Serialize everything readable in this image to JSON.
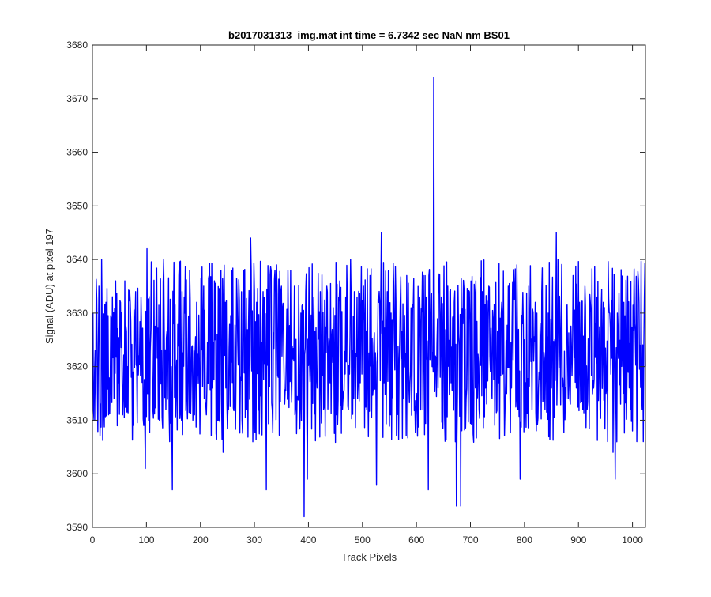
{
  "chart_data": {
    "type": "line",
    "title": "b2017031313_img.mat int time = 6.7342 sec  NaN nm BS01",
    "xlabel": "Track Pixels",
    "ylabel": "Signal (ADU) at pixel 197",
    "xlim": [
      0,
      1024
    ],
    "ylim": [
      3590,
      3680
    ],
    "xticks": [
      0,
      100,
      200,
      300,
      400,
      500,
      600,
      700,
      800,
      900,
      1000
    ],
    "yticks": [
      3590,
      3600,
      3610,
      3620,
      3630,
      3640,
      3650,
      3660,
      3670,
      3680
    ],
    "x_tick_labels": [
      "0",
      "100",
      "200",
      "300",
      "400",
      "500",
      "600",
      "700",
      "800",
      "900",
      "1000"
    ],
    "y_tick_labels": [
      "3590",
      "3600",
      "3610",
      "3620",
      "3630",
      "3640",
      "3650",
      "3660",
      "3670",
      "3680"
    ],
    "grid": false,
    "series": [
      {
        "color": "#0000ff",
        "noise": {
          "n_points": 1024,
          "mean": 3622,
          "min": 3604,
          "max": 3640,
          "x_start": 1
        },
        "points": [
          [
            1,
            3630
          ],
          [
            3,
            3610
          ],
          [
            5,
            3623
          ],
          [
            9,
            3618
          ],
          [
            12,
            3635
          ],
          [
            15,
            3613
          ],
          [
            17,
            3640
          ],
          [
            20,
            3611
          ],
          [
            25,
            3632
          ],
          [
            30,
            3611
          ],
          [
            35,
            3629
          ],
          [
            40,
            3614
          ],
          [
            43,
            3636
          ],
          [
            48,
            3617
          ],
          [
            52,
            3632
          ],
          [
            56,
            3611
          ],
          [
            60,
            3636
          ],
          [
            65,
            3620
          ],
          [
            70,
            3632
          ],
          [
            75,
            3619
          ],
          [
            80,
            3634
          ],
          [
            86,
            3622
          ],
          [
            90,
            3633
          ],
          [
            95,
            3609
          ],
          [
            98,
            3601
          ],
          [
            101,
            3642
          ],
          [
            104,
            3610
          ],
          [
            108,
            3627
          ],
          [
            112,
            3612
          ],
          [
            118,
            3634
          ],
          [
            124,
            3610
          ],
          [
            128,
            3623
          ],
          [
            132,
            3640
          ],
          [
            136,
            3612
          ],
          [
            140,
            3627
          ],
          [
            143,
            3606
          ],
          [
            146,
            3620
          ],
          [
            148,
            3597
          ],
          [
            150,
            3628
          ],
          [
            155,
            3618
          ],
          [
            160,
            3637
          ],
          [
            165,
            3610
          ],
          [
            170,
            3633
          ],
          [
            175,
            3614
          ],
          [
            180,
            3638
          ],
          [
            186,
            3610
          ],
          [
            193,
            3632
          ],
          [
            200,
            3617
          ],
          [
            206,
            3635
          ],
          [
            211,
            3611
          ],
          [
            216,
            3637
          ],
          [
            222,
            3616
          ],
          [
            226,
            3636
          ],
          [
            232,
            3610
          ],
          [
            238,
            3638
          ],
          [
            242,
            3604
          ],
          [
            246,
            3632
          ],
          [
            252,
            3612
          ],
          [
            258,
            3638
          ],
          [
            263,
            3614
          ],
          [
            268,
            3632
          ],
          [
            274,
            3618
          ],
          [
            280,
            3638
          ],
          [
            286,
            3612
          ],
          [
            293,
            3644
          ],
          [
            298,
            3614
          ],
          [
            304,
            3632
          ],
          [
            310,
            3615
          ],
          [
            316,
            3634
          ],
          [
            322,
            3597
          ],
          [
            327,
            3630
          ],
          [
            333,
            3612
          ],
          [
            338,
            3638
          ],
          [
            344,
            3618
          ],
          [
            350,
            3635
          ],
          [
            356,
            3613
          ],
          [
            362,
            3638
          ],
          [
            368,
            3618
          ],
          [
            374,
            3635
          ],
          [
            380,
            3614
          ],
          [
            386,
            3630
          ],
          [
            390,
            3612
          ],
          [
            392,
            3592
          ],
          [
            395,
            3634
          ],
          [
            398,
            3599
          ],
          [
            404,
            3623
          ],
          [
            410,
            3633
          ],
          [
            416,
            3616
          ],
          [
            422,
            3634
          ],
          [
            428,
            3612
          ],
          [
            434,
            3635
          ],
          [
            440,
            3617
          ],
          [
            446,
            3631
          ],
          [
            452,
            3611
          ],
          [
            458,
            3636
          ],
          [
            464,
            3614
          ],
          [
            469,
            3633
          ],
          [
            474,
            3612
          ],
          [
            478,
            3640
          ],
          [
            484,
            3614
          ],
          [
            490,
            3633
          ],
          [
            496,
            3617
          ],
          [
            502,
            3635
          ],
          [
            508,
            3612
          ],
          [
            514,
            3637
          ],
          [
            520,
            3616
          ],
          [
            526,
            3598
          ],
          [
            530,
            3632
          ],
          [
            535,
            3645
          ],
          [
            540,
            3617
          ],
          [
            546,
            3634
          ],
          [
            552,
            3611
          ],
          [
            558,
            3635
          ],
          [
            564,
            3616
          ],
          [
            570,
            3632
          ],
          [
            576,
            3614
          ],
          [
            582,
            3637
          ],
          [
            588,
            3617
          ],
          [
            594,
            3631
          ],
          [
            600,
            3615
          ],
          [
            606,
            3633
          ],
          [
            612,
            3612
          ],
          [
            618,
            3633
          ],
          [
            622,
            3597
          ],
          [
            626,
            3626
          ],
          [
            629,
            3620
          ],
          [
            632,
            3674
          ],
          [
            635,
            3622
          ],
          [
            640,
            3616
          ],
          [
            646,
            3633
          ],
          [
            652,
            3611
          ],
          [
            658,
            3635
          ],
          [
            664,
            3617
          ],
          [
            670,
            3632
          ],
          [
            674,
            3594
          ],
          [
            678,
            3626
          ],
          [
            682,
            3594
          ],
          [
            686,
            3628
          ],
          [
            692,
            3614
          ],
          [
            698,
            3634
          ],
          [
            704,
            3618
          ],
          [
            710,
            3636
          ],
          [
            716,
            3612
          ],
          [
            722,
            3634
          ],
          [
            728,
            3616
          ],
          [
            734,
            3635
          ],
          [
            740,
            3614
          ],
          [
            746,
            3633
          ],
          [
            752,
            3617
          ],
          [
            758,
            3632
          ],
          [
            764,
            3612
          ],
          [
            770,
            3635
          ],
          [
            776,
            3616
          ],
          [
            782,
            3633
          ],
          [
            788,
            3612
          ],
          [
            792,
            3599
          ],
          [
            796,
            3628
          ],
          [
            802,
            3617
          ],
          [
            808,
            3635
          ],
          [
            814,
            3612
          ],
          [
            820,
            3632
          ],
          [
            826,
            3616
          ],
          [
            832,
            3634
          ],
          [
            838,
            3612
          ],
          [
            844,
            3630
          ],
          [
            850,
            3616
          ],
          [
            856,
            3625
          ],
          [
            859,
            3645
          ],
          [
            862,
            3640
          ],
          [
            866,
            3626
          ],
          [
            872,
            3616
          ],
          [
            878,
            3631
          ],
          [
            884,
            3614
          ],
          [
            890,
            3637
          ],
          [
            896,
            3616
          ],
          [
            902,
            3632
          ],
          [
            908,
            3612
          ],
          [
            912,
            3635
          ],
          [
            916,
            3612
          ],
          [
            922,
            3632
          ],
          [
            928,
            3616
          ],
          [
            934,
            3633
          ],
          [
            940,
            3612
          ],
          [
            946,
            3632
          ],
          [
            952,
            3616
          ],
          [
            958,
            3630
          ],
          [
            964,
            3604
          ],
          [
            968,
            3599
          ],
          [
            972,
            3630
          ],
          [
            978,
            3613
          ],
          [
            984,
            3632
          ],
          [
            990,
            3620
          ],
          [
            996,
            3612
          ],
          [
            1000,
            3608
          ],
          [
            1004,
            3628
          ],
          [
            1008,
            3606
          ],
          [
            1012,
            3632
          ],
          [
            1014,
            3624
          ],
          [
            1018,
            3612
          ],
          [
            1020,
            3606
          ],
          [
            1022,
            3633
          ],
          [
            1024,
            3620
          ]
        ]
      }
    ]
  }
}
